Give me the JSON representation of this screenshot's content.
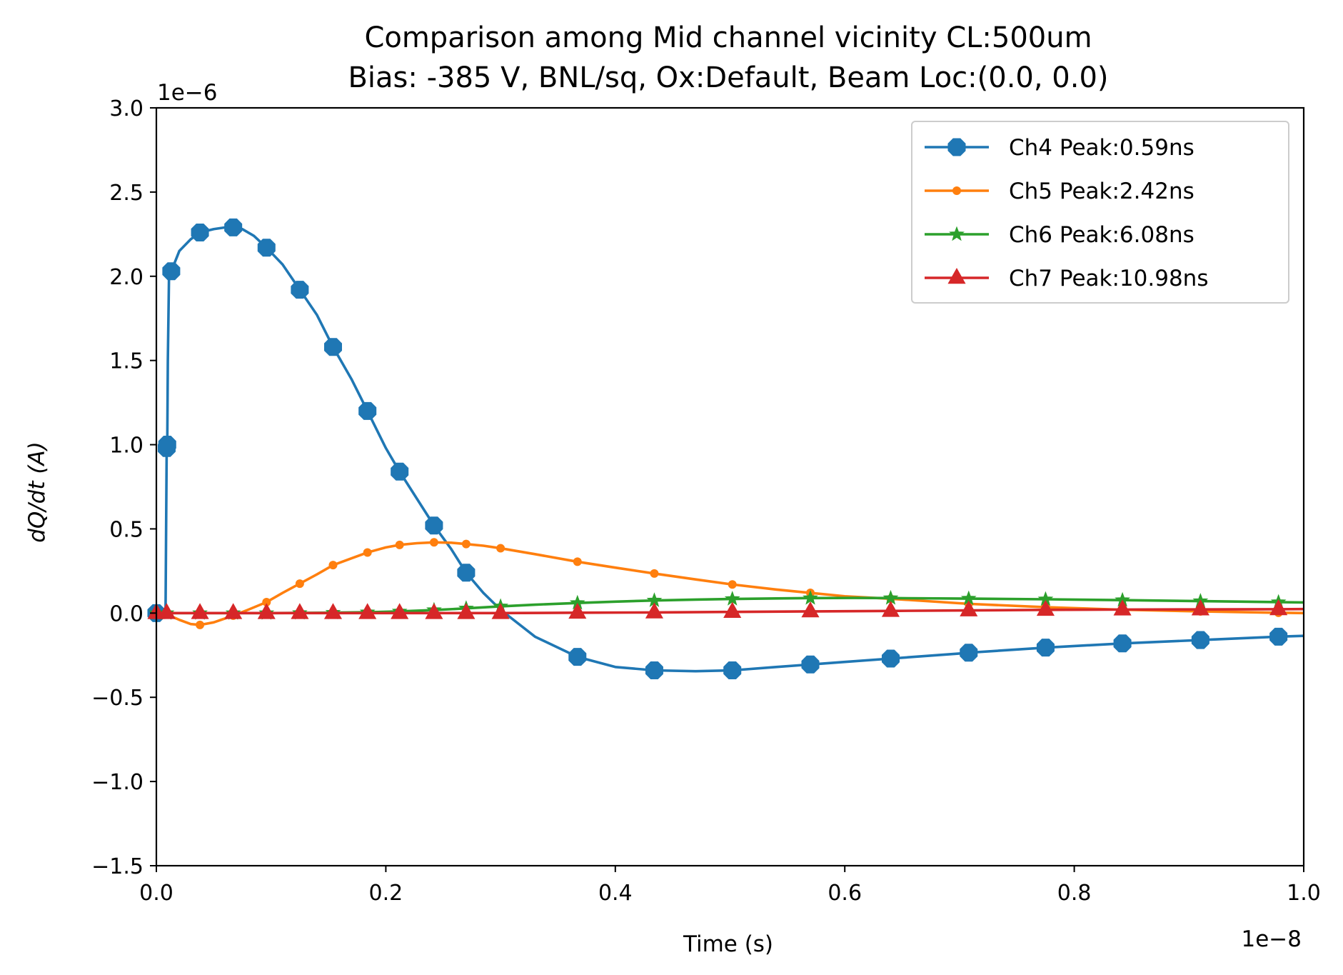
{
  "chart_data": {
    "type": "line",
    "title": [
      "Comparison among Mid channel vicinity CL:500um",
      "Bias: -385 V, BNL/sq, Ox:Default, Beam Loc:(0.0, 0.0)"
    ],
    "xlabel": "Time (s)",
    "ylabel": "dQ/dt (A)",
    "x_scale_label": "1e−8",
    "y_scale_label": "1e−6",
    "xlim": [
      0.0,
      1.0
    ],
    "ylim": [
      -1.5,
      3.0
    ],
    "x_ticks": [
      0.0,
      0.2,
      0.4,
      0.6,
      0.8,
      1.0
    ],
    "x_tick_labels": [
      "0.0",
      "0.2",
      "0.4",
      "0.6",
      "0.8",
      "1.0"
    ],
    "y_ticks": [
      -1.5,
      -1.0,
      -0.5,
      0.0,
      0.5,
      1.0,
      1.5,
      2.0,
      2.5,
      3.0
    ],
    "y_tick_labels": [
      "−1.5",
      "−1.0",
      "−0.5",
      "0.0",
      "0.5",
      "1.0",
      "1.5",
      "2.0",
      "2.5",
      "3.0"
    ],
    "legend_position": "top-right",
    "series": [
      {
        "name": "Ch4 Peak:0.59ns",
        "color": "#1f77b4",
        "marker": "octagon",
        "x": [
          0.0,
          0.008,
          0.0085,
          0.009,
          0.0095,
          0.01,
          0.011,
          0.013,
          0.02,
          0.03,
          0.038,
          0.05,
          0.06,
          0.067,
          0.075,
          0.085,
          0.096,
          0.11,
          0.125,
          0.14,
          0.154,
          0.17,
          0.184,
          0.2,
          0.212,
          0.227,
          0.242,
          0.257,
          0.27,
          0.285,
          0.3,
          0.33,
          0.367,
          0.4,
          0.434,
          0.47,
          0.502,
          0.54,
          0.57,
          0.6,
          0.64,
          0.7,
          0.708,
          0.775,
          0.842,
          0.91,
          0.978,
          1.0
        ],
        "y": [
          0.0,
          0.0,
          0.5,
          0.98,
          1.0,
          1.5,
          1.99,
          2.03,
          2.15,
          2.22,
          2.26,
          2.28,
          2.29,
          2.29,
          2.28,
          2.24,
          2.17,
          2.07,
          1.92,
          1.77,
          1.58,
          1.39,
          1.2,
          0.98,
          0.84,
          0.68,
          0.52,
          0.38,
          0.24,
          0.12,
          0.02,
          -0.14,
          -0.26,
          -0.32,
          -0.34,
          -0.345,
          -0.34,
          -0.32,
          -0.305,
          -0.29,
          -0.27,
          -0.24,
          -0.235,
          -0.205,
          -0.18,
          -0.16,
          -0.14,
          -0.135
        ],
        "marker_x": [
          0.0,
          0.009,
          0.0095,
          0.013,
          0.038,
          0.067,
          0.096,
          0.125,
          0.154,
          0.184,
          0.212,
          0.242,
          0.27,
          0.367,
          0.434,
          0.502,
          0.57,
          0.64,
          0.708,
          0.775,
          0.842,
          0.91,
          0.978
        ]
      },
      {
        "name": "Ch5 Peak:2.42ns",
        "color": "#ff7f0e",
        "marker": "point",
        "x": [
          0.0,
          0.01,
          0.02,
          0.03,
          0.038,
          0.05,
          0.067,
          0.08,
          0.096,
          0.11,
          0.125,
          0.14,
          0.154,
          0.17,
          0.184,
          0.2,
          0.212,
          0.227,
          0.242,
          0.257,
          0.27,
          0.285,
          0.3,
          0.33,
          0.367,
          0.4,
          0.434,
          0.47,
          0.502,
          0.54,
          0.57,
          0.6,
          0.64,
          0.708,
          0.775,
          0.842,
          0.91,
          0.978,
          1.0
        ],
        "y": [
          0.0,
          -0.01,
          -0.04,
          -0.065,
          -0.07,
          -0.055,
          -0.015,
          0.02,
          0.065,
          0.12,
          0.175,
          0.23,
          0.285,
          0.325,
          0.36,
          0.39,
          0.405,
          0.415,
          0.42,
          0.418,
          0.41,
          0.4,
          0.385,
          0.35,
          0.305,
          0.27,
          0.235,
          0.2,
          0.17,
          0.14,
          0.12,
          0.1,
          0.085,
          0.055,
          0.035,
          0.02,
          0.01,
          0.002,
          0.0
        ],
        "marker_x": [
          0.0,
          0.009,
          0.038,
          0.067,
          0.096,
          0.125,
          0.154,
          0.184,
          0.212,
          0.242,
          0.27,
          0.3,
          0.367,
          0.434,
          0.502,
          0.57,
          0.64,
          0.708,
          0.775,
          0.842,
          0.91,
          0.978
        ]
      },
      {
        "name": "Ch6 Peak:6.08ns",
        "color": "#2ca02c",
        "marker": "star",
        "x": [
          0.0,
          0.05,
          0.1,
          0.15,
          0.184,
          0.212,
          0.242,
          0.27,
          0.3,
          0.33,
          0.367,
          0.4,
          0.434,
          0.47,
          0.502,
          0.54,
          0.57,
          0.608,
          0.64,
          0.708,
          0.775,
          0.842,
          0.91,
          0.978,
          1.0
        ],
        "y": [
          0.0,
          0.0,
          0.0,
          0.002,
          0.005,
          0.01,
          0.018,
          0.028,
          0.04,
          0.05,
          0.06,
          0.068,
          0.075,
          0.08,
          0.084,
          0.087,
          0.089,
          0.09,
          0.089,
          0.086,
          0.082,
          0.077,
          0.071,
          0.065,
          0.063
        ],
        "marker_x": [
          0.0,
          0.009,
          0.038,
          0.067,
          0.096,
          0.125,
          0.154,
          0.184,
          0.212,
          0.242,
          0.27,
          0.3,
          0.367,
          0.434,
          0.502,
          0.57,
          0.64,
          0.708,
          0.775,
          0.842,
          0.91,
          0.978
        ]
      },
      {
        "name": "Ch7 Peak:10.98ns",
        "color": "#d62728",
        "marker": "triangle",
        "x": [
          0.0,
          0.1,
          0.2,
          0.3,
          0.367,
          0.434,
          0.502,
          0.57,
          0.64,
          0.708,
          0.775,
          0.842,
          0.91,
          0.978,
          1.0
        ],
        "y": [
          0.0,
          0.0,
          0.0,
          0.0,
          0.002,
          0.004,
          0.007,
          0.01,
          0.013,
          0.016,
          0.019,
          0.021,
          0.022,
          0.023,
          0.024
        ],
        "marker_x": [
          0.0,
          0.009,
          0.038,
          0.067,
          0.096,
          0.125,
          0.154,
          0.184,
          0.212,
          0.242,
          0.27,
          0.3,
          0.367,
          0.434,
          0.502,
          0.57,
          0.64,
          0.708,
          0.775,
          0.842,
          0.91,
          0.978
        ]
      }
    ]
  }
}
